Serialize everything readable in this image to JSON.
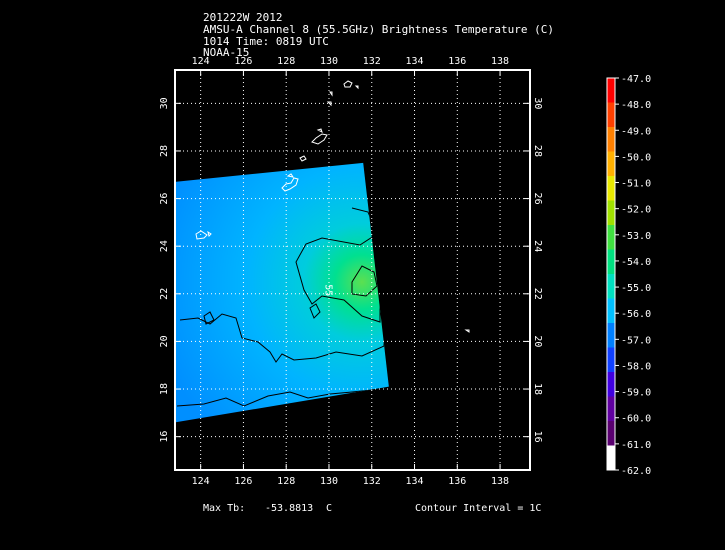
{
  "header": {
    "line1": "201222W 2012",
    "line2": "AMSU-A Channel 8 (55.5GHz) Brightness Temperature (C)",
    "line3": "1014 Time: 0819 UTC",
    "line4": "NOAA-15"
  },
  "map": {
    "lon_range": [
      122.8,
      139.4
    ],
    "lat_range": [
      14.6,
      31.4
    ],
    "lon_ticks": [
      124,
      126,
      128,
      130,
      132,
      134,
      136,
      138
    ],
    "lat_ticks": [
      16,
      18,
      20,
      22,
      24,
      26,
      28,
      30
    ],
    "lon_tick_labels": [
      "124",
      "126",
      "128",
      "130",
      "132",
      "134",
      "136",
      "138"
    ],
    "lat_tick_labels": [
      "16",
      "18",
      "20",
      "22",
      "24",
      "26",
      "28",
      "30"
    ],
    "grid": "dotted",
    "swath_corners": [
      [
        122.8,
        26.7
      ],
      [
        131.6,
        27.5
      ],
      [
        132.8,
        18.1
      ],
      [
        122.8,
        16.6
      ]
    ],
    "warm_core_center": [
      131.2,
      22.4
    ],
    "warm_core_max": -53.8813,
    "contour_label": "55"
  },
  "colorbar": {
    "labels": [
      "-47.0",
      "-48.0",
      "-49.0",
      "-50.0",
      "-51.0",
      "-52.0",
      "-53.0",
      "-54.0",
      "-55.0",
      "-56.0",
      "-57.0",
      "-58.0",
      "-59.0",
      "-60.0",
      "-61.0",
      "-62.0"
    ],
    "colors": [
      "#ff0000",
      "#ff4000",
      "#ff8000",
      "#ffb000",
      "#e8e800",
      "#a0e000",
      "#40e040",
      "#00e080",
      "#00e0c0",
      "#00c0ff",
      "#0080ff",
      "#1040ff",
      "#4000e0",
      "#6000a0",
      "#5a0070",
      "#ffffff"
    ]
  },
  "footer": {
    "max_label": "Max Tb:",
    "max_value": "-53.8813",
    "max_unit": "C",
    "contour_text": "Contour Interval = 1C"
  }
}
